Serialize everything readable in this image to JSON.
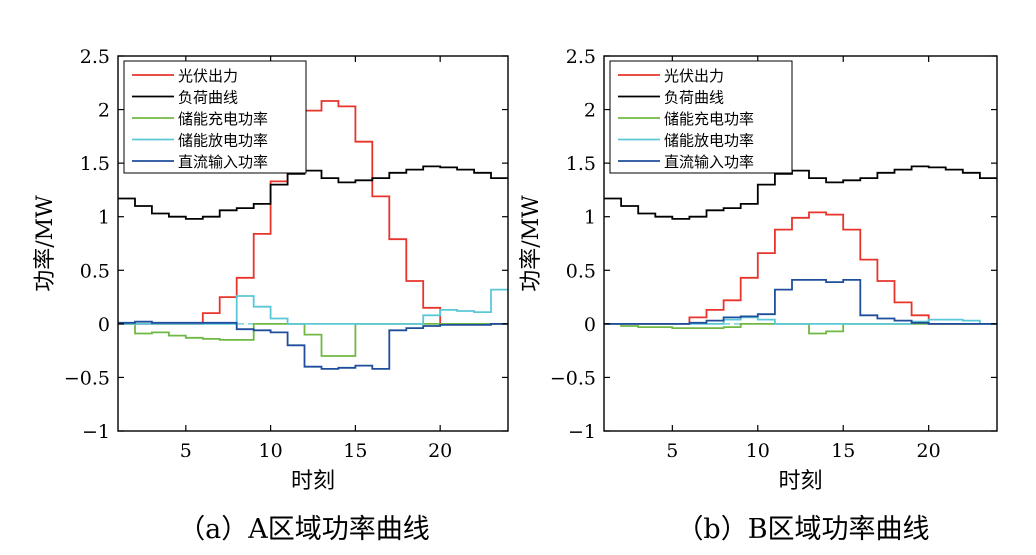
{
  "legend_labels": [
    "光伏出力",
    "负荷曲线",
    "储能充电功率",
    "储能放电功率",
    "直流输入功率"
  ],
  "series_colors": {
    "pv": "#e8342b",
    "load": "#000000",
    "charge": "#70b845",
    "discharge": "#5bc8d8",
    "dc": "#1f4e9c"
  },
  "chart_data": [
    {
      "type": "line",
      "step": true,
      "caption": "（a）A区域功率曲线",
      "xlabel": "时刻",
      "ylabel": "功率/MW",
      "xlim": [
        1,
        24
      ],
      "ylim": [
        -1,
        2.5
      ],
      "xticks": [
        5,
        10,
        15,
        20
      ],
      "yticks": [
        -1,
        -0.5,
        0,
        0.5,
        1,
        1.5,
        2,
        2.5
      ],
      "ytick_labels": [
        "−1",
        "−0.5",
        "0",
        "0.5",
        "1",
        "1.5",
        "2",
        "2.5"
      ],
      "legend_position": "top-left",
      "x": [
        1,
        2,
        3,
        4,
        5,
        6,
        7,
        8,
        9,
        10,
        11,
        12,
        13,
        14,
        15,
        16,
        17,
        18,
        19,
        20,
        21,
        22,
        23
      ],
      "series": [
        {
          "name": "光伏出力",
          "key": "pv",
          "values": [
            0,
            0,
            0,
            0,
            0,
            0.1,
            0.25,
            0.43,
            0.84,
            1.33,
            1.78,
            1.99,
            2.08,
            2.03,
            1.7,
            1.19,
            0.79,
            0.4,
            0.15,
            0,
            0,
            0,
            0
          ]
        },
        {
          "name": "负荷曲线",
          "key": "load",
          "values": [
            1.17,
            1.1,
            1.03,
            1.0,
            0.98,
            1.0,
            1.06,
            1.08,
            1.12,
            1.3,
            1.4,
            1.43,
            1.36,
            1.32,
            1.34,
            1.36,
            1.41,
            1.44,
            1.47,
            1.46,
            1.44,
            1.41,
            1.36
          ]
        },
        {
          "name": "储能充电功率",
          "key": "charge",
          "values": [
            0,
            -0.09,
            -0.08,
            -0.11,
            -0.13,
            -0.14,
            -0.15,
            -0.15,
            0,
            0,
            0,
            -0.1,
            -0.3,
            -0.3,
            0,
            0,
            0,
            0,
            0,
            0,
            0,
            0,
            0
          ]
        },
        {
          "name": "储能放电功率",
          "key": "discharge",
          "values": [
            0,
            0,
            0,
            0,
            0,
            0,
            0,
            0.26,
            0.16,
            0.05,
            0,
            0,
            0,
            0,
            0,
            0,
            0,
            0,
            0.08,
            0.13,
            0.12,
            0.11,
            0.32
          ]
        },
        {
          "name": "直流输入功率",
          "key": "dc",
          "values": [
            0.01,
            0.02,
            0.01,
            0.01,
            0.01,
            0.01,
            0.01,
            -0.05,
            -0.06,
            -0.08,
            -0.2,
            -0.4,
            -0.42,
            -0.41,
            -0.39,
            -0.42,
            -0.06,
            -0.04,
            -0.02,
            -0.01,
            -0.01,
            -0.01,
            0
          ]
        }
      ]
    },
    {
      "type": "line",
      "step": true,
      "caption": "（b）B区域功率曲线",
      "xlabel": "时刻",
      "ylabel": "功率/MW",
      "xlim": [
        1,
        24
      ],
      "ylim": [
        -1,
        2.5
      ],
      "xticks": [
        5,
        10,
        15,
        20
      ],
      "yticks": [
        -1,
        -0.5,
        0,
        0.5,
        1,
        1.5,
        2,
        2.5
      ],
      "ytick_labels": [
        "−1",
        "−0.5",
        "0",
        "0.5",
        "1",
        "1.5",
        "2",
        "2.5"
      ],
      "legend_position": "top-left",
      "x": [
        1,
        2,
        3,
        4,
        5,
        6,
        7,
        8,
        9,
        10,
        11,
        12,
        13,
        14,
        15,
        16,
        17,
        18,
        19,
        20,
        21,
        22,
        23
      ],
      "series": [
        {
          "name": "光伏出力",
          "key": "pv",
          "values": [
            0,
            0,
            0,
            0,
            0,
            0.06,
            0.13,
            0.22,
            0.43,
            0.66,
            0.88,
            0.99,
            1.04,
            1.02,
            0.88,
            0.6,
            0.4,
            0.2,
            0.08,
            0,
            0,
            0,
            0
          ]
        },
        {
          "name": "负荷曲线",
          "key": "load",
          "values": [
            1.17,
            1.1,
            1.03,
            1.0,
            0.98,
            1.0,
            1.06,
            1.08,
            1.12,
            1.3,
            1.4,
            1.43,
            1.36,
            1.32,
            1.34,
            1.36,
            1.41,
            1.44,
            1.47,
            1.46,
            1.44,
            1.41,
            1.36
          ]
        },
        {
          "name": "储能充电功率",
          "key": "charge",
          "values": [
            0,
            -0.02,
            -0.03,
            -0.03,
            -0.04,
            -0.04,
            -0.04,
            -0.03,
            0,
            0,
            0,
            0,
            -0.09,
            -0.07,
            0,
            0,
            0,
            0,
            0,
            0,
            0,
            0,
            0
          ]
        },
        {
          "name": "储能放电功率",
          "key": "discharge",
          "values": [
            0,
            0,
            0,
            0,
            0,
            0,
            0,
            0.04,
            0.06,
            0.04,
            0,
            0,
            0,
            0,
            0,
            0,
            0,
            0,
            0.02,
            0.04,
            0.04,
            0.03,
            0
          ]
        },
        {
          "name": "直流输入功率",
          "key": "dc",
          "values": [
            0,
            0,
            0,
            0,
            0,
            0.01,
            0.03,
            0.06,
            0.07,
            0.09,
            0.32,
            0.41,
            0.41,
            0.39,
            0.41,
            0.08,
            0.05,
            0.03,
            0.01,
            0,
            0,
            0,
            0
          ]
        }
      ]
    }
  ]
}
